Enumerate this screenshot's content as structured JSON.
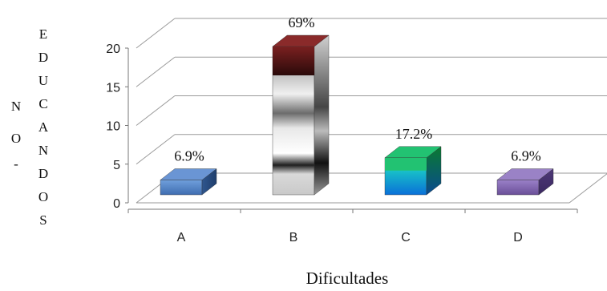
{
  "chart_data": {
    "type": "bar",
    "xlabel": "Dificultades",
    "ylabel_outer": [
      "N",
      "O",
      "-"
    ],
    "ylabel_letters": [
      "E",
      "D",
      "U",
      "C",
      "A",
      "N",
      "D",
      "O",
      "S"
    ],
    "ylim": [
      0,
      20
    ],
    "yticks": [
      "0",
      "5",
      "10",
      "15",
      "20"
    ],
    "categories": [
      "A",
      "B",
      "C",
      "D"
    ],
    "values": [
      2,
      20,
      5,
      2
    ],
    "data_labels": [
      "6.9%",
      "69%",
      "17.2%",
      "6.9%"
    ],
    "grid": true,
    "bar_colors": {
      "A": "#4f7fc0",
      "B": "#c8c8c8",
      "B_top": "#5a1a1a",
      "C": "#10a8e8",
      "C_top": "#10a050",
      "D": "#7e63a8"
    }
  }
}
